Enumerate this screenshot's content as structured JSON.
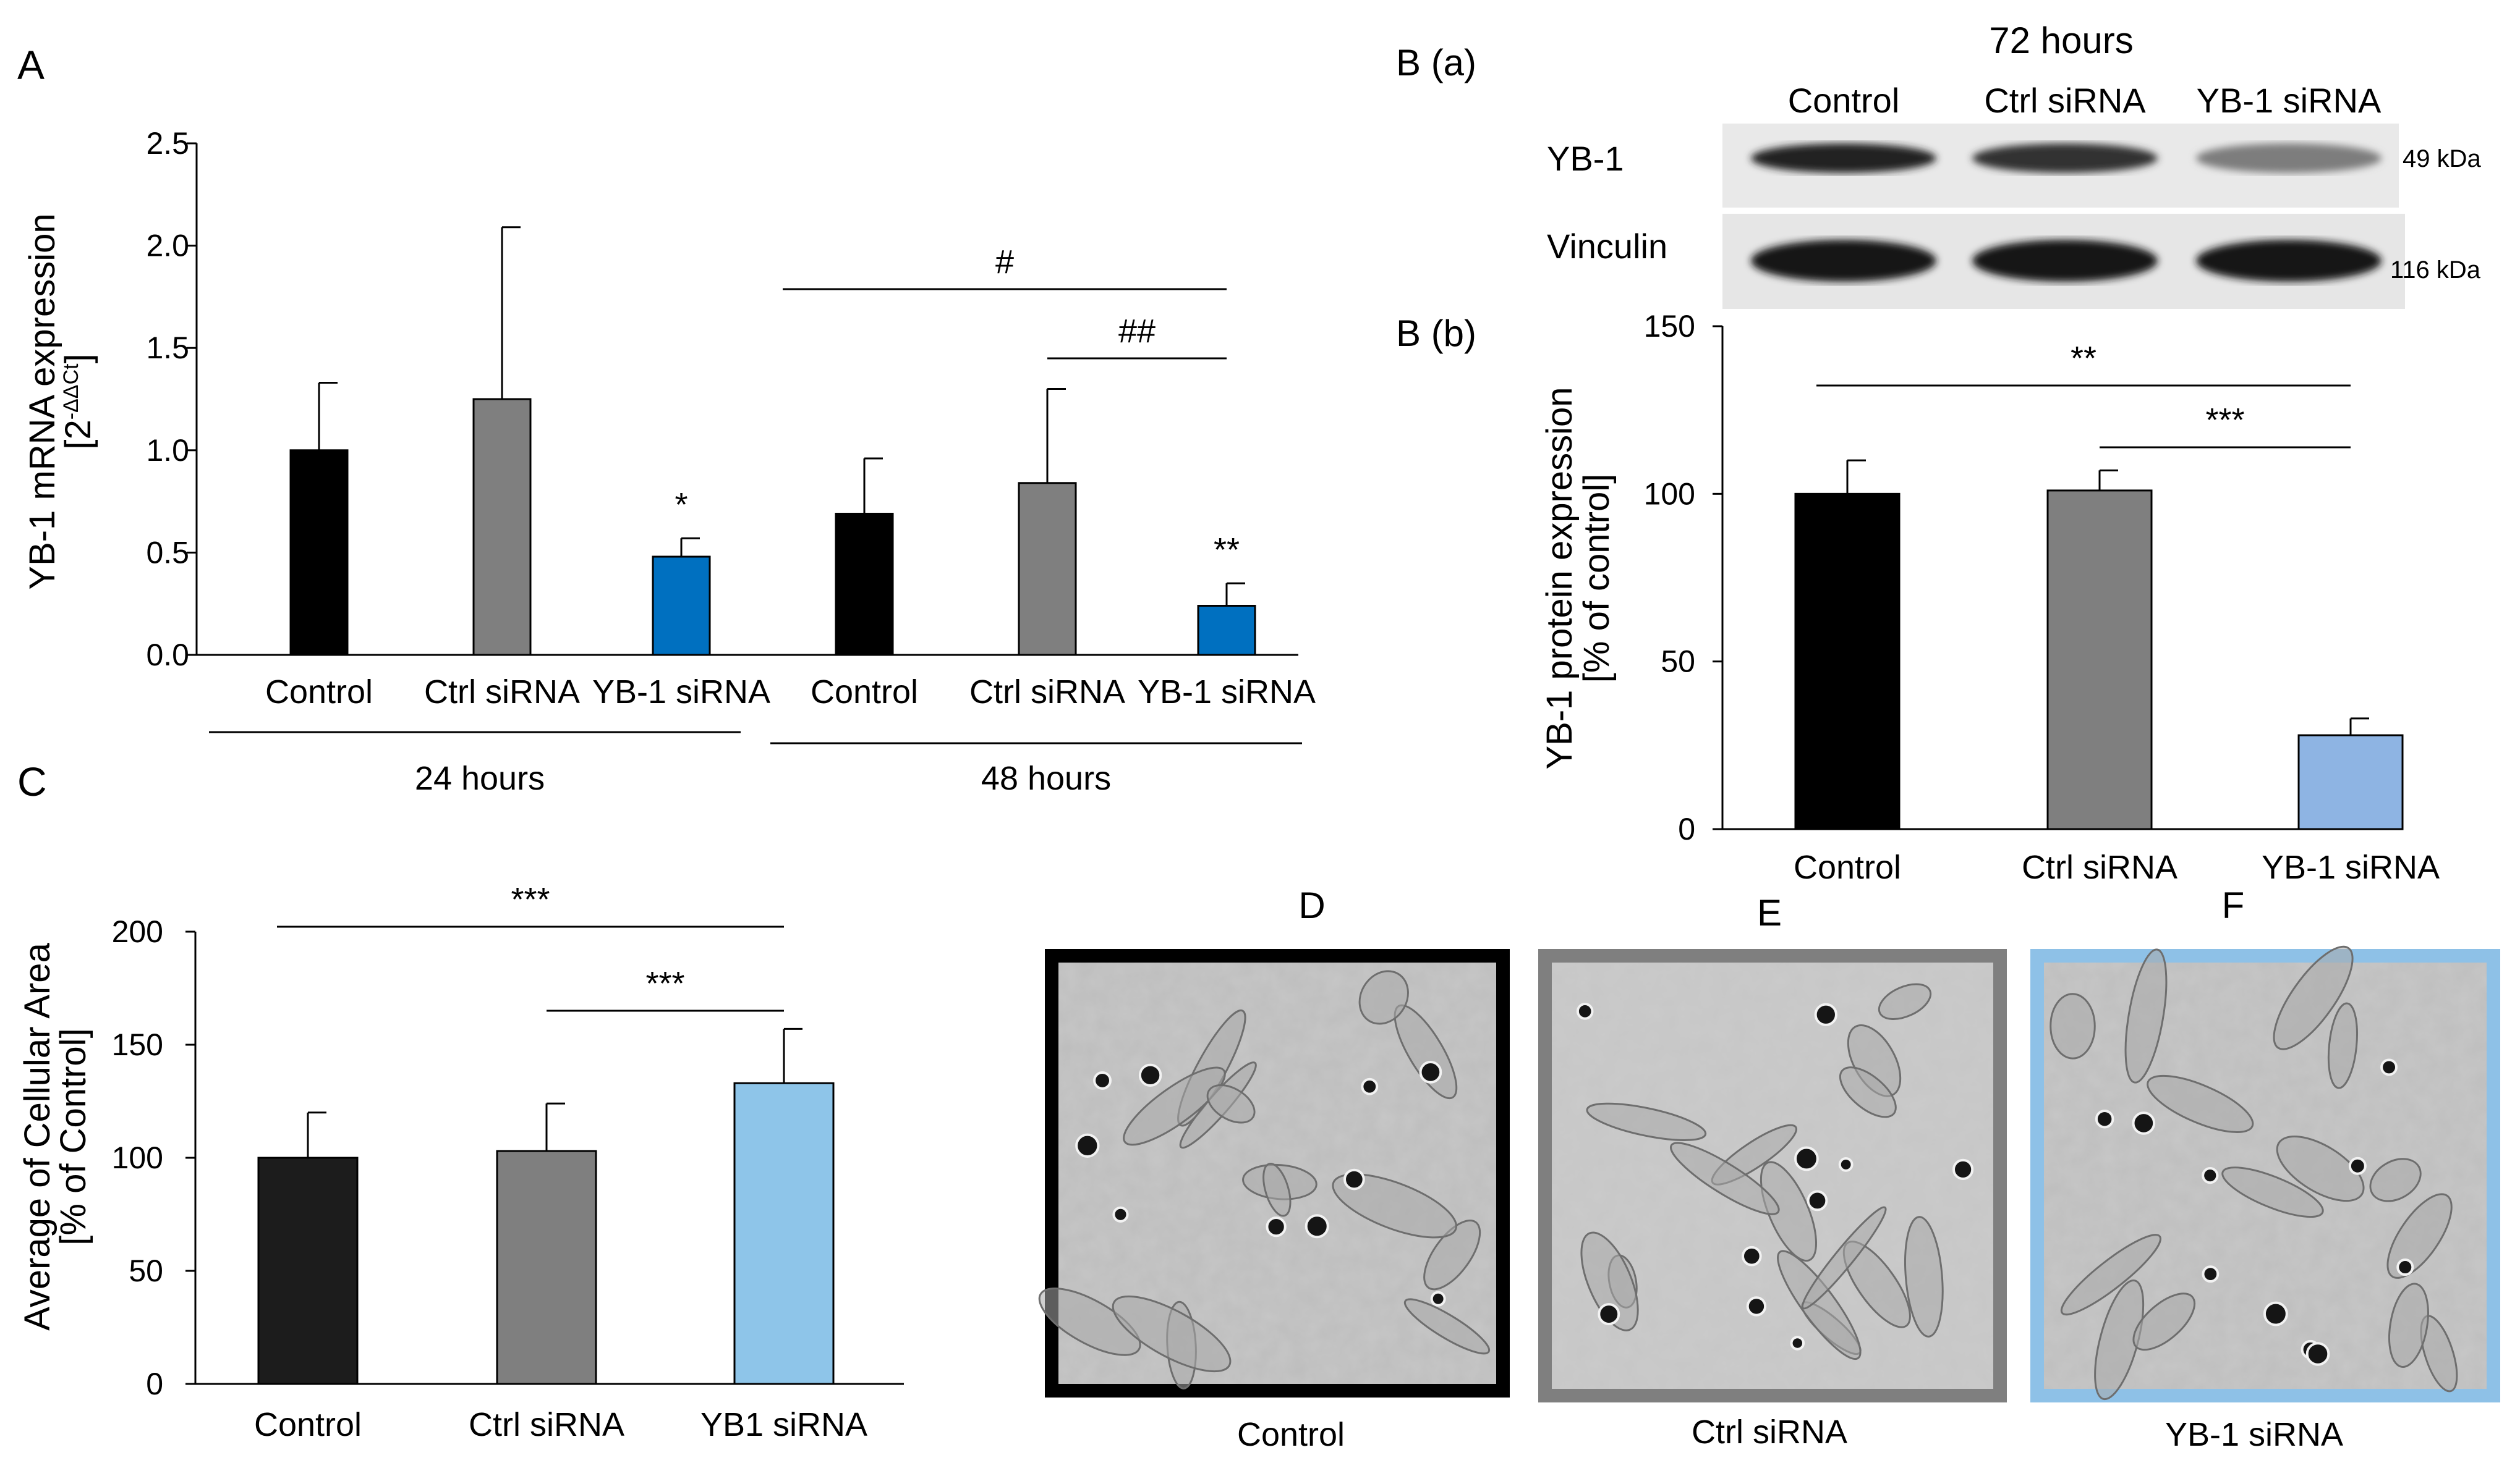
{
  "panels": {
    "A": {
      "letter": "A",
      "ylabel_line1": "YB-1 mRNA expression",
      "ylabel_line2_prefix": "[2",
      "ylabel_line2_exponent": "-ΔΔCt",
      "ylabel_line2_suffix": "]",
      "groups": [
        {
          "label": "24 hours"
        },
        {
          "label": "48 hours"
        }
      ],
      "significance": [
        {
          "label": "#",
          "from_bar": 3,
          "to_bar": 5
        },
        {
          "label": "##",
          "from_bar": 4,
          "to_bar": 5
        }
      ]
    },
    "B": {
      "title_a": "B (a)",
      "title_b": "B (b)",
      "blot_timepoint": "72 hours",
      "lane_labels": [
        "Control",
        "Ctrl siRNA",
        "YB-1 siRNA"
      ],
      "rows": [
        {
          "protein": "YB-1",
          "size": "49 kDa",
          "intensity": [
            0.9,
            0.8,
            0.3
          ]
        },
        {
          "protein": "Vinculin",
          "size": "116 kDa",
          "intensity": [
            1.0,
            1.0,
            1.0
          ]
        }
      ],
      "ylabel_line1": "YB-1 protein expression",
      "ylabel_line2": "[% of control]",
      "significance": [
        {
          "label": "**",
          "from_bar": 0,
          "to_bar": 2
        },
        {
          "label": "***",
          "from_bar": 1,
          "to_bar": 2
        }
      ]
    },
    "C": {
      "letter": "C",
      "ylabel_line1": "Average of Cellular Area",
      "ylabel_line2": "[% of Control]",
      "significance": [
        {
          "label": "***",
          "from_bar": 0,
          "to_bar": 2
        },
        {
          "label": "***",
          "from_bar": 1,
          "to_bar": 2
        }
      ]
    },
    "images": [
      {
        "letter": "D",
        "caption": "Control",
        "border_color": "#000000"
      },
      {
        "letter": "E",
        "caption": "Ctrl siRNA",
        "border_color": "#7f7f7f"
      },
      {
        "letter": "F",
        "caption": "YB-1 siRNA",
        "border_color": "#8ec1e7"
      }
    ]
  },
  "chart_data": [
    {
      "id": "A",
      "type": "bar",
      "categories": [
        "Control",
        "Ctrl siRNA",
        "YB-1 siRNA",
        "Control",
        "Ctrl siRNA",
        "YB-1 siRNA"
      ],
      "values": [
        1.0,
        1.25,
        0.48,
        0.69,
        0.84,
        0.24
      ],
      "errors": [
        0.33,
        0.84,
        0.09,
        0.27,
        0.46,
        0.11
      ],
      "colors": [
        "#000000",
        "#7f7f7f",
        "#0070c0",
        "#000000",
        "#7f7f7f",
        "#0070c0"
      ],
      "bar_annotations": [
        "",
        "",
        "*",
        "",
        "",
        "**"
      ],
      "ylim": [
        0,
        2.5
      ],
      "yticks": [
        "0.0",
        "0.5",
        "1.0",
        "1.5",
        "2.0",
        "2.5"
      ],
      "ylabel": "YB-1 mRNA expression [2-ΔΔCt]",
      "groups": [
        "24 hours",
        "48 hours"
      ]
    },
    {
      "id": "B(b)",
      "type": "bar",
      "categories": [
        "Control",
        "Ctrl siRNA",
        "YB-1 siRNA"
      ],
      "values": [
        100,
        101,
        28
      ],
      "errors": [
        10,
        6,
        5
      ],
      "colors": [
        "#000000",
        "#7f7f7f",
        "#8eb4e3"
      ],
      "ylim": [
        0,
        150
      ],
      "yticks": [
        "0",
        "50",
        "100",
        "150"
      ],
      "ylabel": "YB-1 protein expression [% of control]"
    },
    {
      "id": "C",
      "type": "bar",
      "categories": [
        "Control",
        "Ctrl siRNA",
        "YB1 siRNA"
      ],
      "values": [
        100,
        103,
        133
      ],
      "errors": [
        20,
        21,
        24
      ],
      "colors": [
        "#1c1c1c",
        "#7f7f7f",
        "#8ec5e9"
      ],
      "ylim": [
        0,
        200
      ],
      "yticks": [
        "0",
        "50",
        "100",
        "150",
        "200"
      ],
      "ylabel": "Average of Cellular Area [% of Control]"
    }
  ]
}
